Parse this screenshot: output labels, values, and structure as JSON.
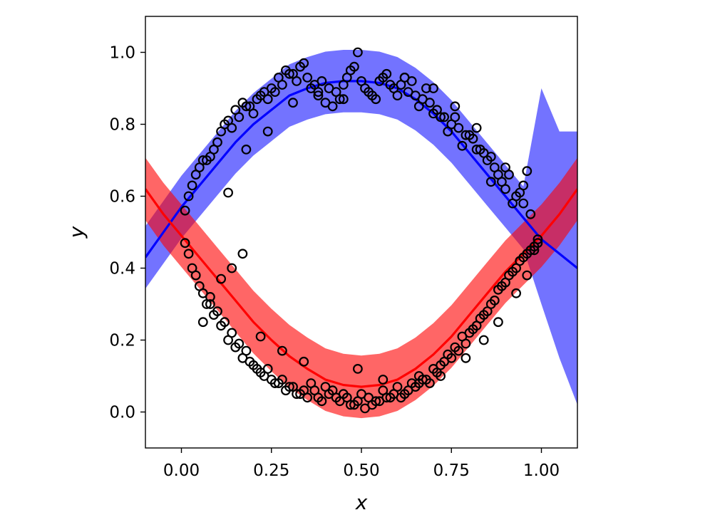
{
  "chart_data": {
    "type": "scatter",
    "title": "",
    "xlabel": "x",
    "ylabel": "y",
    "xlim": [
      -0.1,
      1.1
    ],
    "ylim": [
      -0.1,
      1.1
    ],
    "x_ticks": [
      "0.00",
      "0.25",
      "0.50",
      "0.75",
      "1.00"
    ],
    "x_tick_values": [
      0.0,
      0.25,
      0.5,
      0.75,
      1.0
    ],
    "y_ticks": [
      "0.0",
      "0.2",
      "0.4",
      "0.6",
      "0.8",
      "1.0"
    ],
    "y_tick_values": [
      0.0,
      0.2,
      0.4,
      0.6,
      0.8,
      1.0
    ],
    "grid": false,
    "legend": "none",
    "colors": {
      "blue": "#0000ff",
      "red": "#ff0000",
      "points": "#000000"
    },
    "band_width": 0.087,
    "series": [
      {
        "color": "#0000ff",
        "mean_line": {
          "x": [
            -0.1,
            -0.05,
            0.0,
            0.05,
            0.1,
            0.15,
            0.2,
            0.25,
            0.3,
            0.35,
            0.4,
            0.45,
            0.5,
            0.55,
            0.6,
            0.65,
            0.7,
            0.75,
            0.8,
            0.85,
            0.9,
            0.95,
            1.0,
            1.05,
            1.1
          ],
          "y": [
            0.43,
            0.5,
            0.57,
            0.63,
            0.69,
            0.75,
            0.8,
            0.84,
            0.88,
            0.9,
            0.915,
            0.92,
            0.92,
            0.915,
            0.9,
            0.87,
            0.83,
            0.78,
            0.72,
            0.66,
            0.6,
            0.54,
            0.48,
            0.44,
            0.4
          ]
        },
        "band_upper_right": [
          0.9,
          0.78,
          0.78
        ],
        "band_lower_right": [
          0.3,
          0.15,
          0.02
        ]
      },
      {
        "color": "#ff0000",
        "mean_line": {
          "x": [
            -0.1,
            -0.05,
            0.0,
            0.05,
            0.1,
            0.15,
            0.2,
            0.25,
            0.3,
            0.35,
            0.4,
            0.45,
            0.5,
            0.55,
            0.6,
            0.65,
            0.7,
            0.75,
            0.8,
            0.85,
            0.9,
            0.95,
            1.0,
            1.05,
            1.1
          ],
          "y": [
            0.62,
            0.55,
            0.49,
            0.43,
            0.37,
            0.31,
            0.25,
            0.2,
            0.155,
            0.12,
            0.09,
            0.075,
            0.07,
            0.075,
            0.09,
            0.12,
            0.16,
            0.21,
            0.27,
            0.33,
            0.39,
            0.44,
            0.49,
            0.55,
            0.62
          ]
        }
      }
    ],
    "points": {
      "x": [
        0.01,
        0.03,
        0.05,
        0.07,
        0.09,
        0.11,
        0.13,
        0.15,
        0.17,
        0.19,
        0.21,
        0.23,
        0.25,
        0.27,
        0.29,
        0.31,
        0.33,
        0.35,
        0.37,
        0.39,
        0.41,
        0.43,
        0.45,
        0.47,
        0.49,
        0.51,
        0.53,
        0.55,
        0.57,
        0.59,
        0.61,
        0.63,
        0.65,
        0.67,
        0.69,
        0.71,
        0.73,
        0.75,
        0.77,
        0.79,
        0.81,
        0.83,
        0.85,
        0.87,
        0.89,
        0.91,
        0.93,
        0.95,
        0.97,
        0.99,
        0.02,
        0.04,
        0.06,
        0.08,
        0.1,
        0.12,
        0.14,
        0.16,
        0.18,
        0.2,
        0.22,
        0.24,
        0.26,
        0.28,
        0.3,
        0.32,
        0.34,
        0.36,
        0.38,
        0.4,
        0.42,
        0.44,
        0.46,
        0.48,
        0.5,
        0.52,
        0.54,
        0.56,
        0.58,
        0.6,
        0.62,
        0.64,
        0.66,
        0.68,
        0.7,
        0.72,
        0.74,
        0.76,
        0.78,
        0.8,
        0.82,
        0.84,
        0.86,
        0.88,
        0.9,
        0.92,
        0.94,
        0.96,
        0.98,
        0.01,
        0.03,
        0.05,
        0.07,
        0.09,
        0.11,
        0.13,
        0.15,
        0.17,
        0.19,
        0.21,
        0.23,
        0.25,
        0.27,
        0.29,
        0.31,
        0.33,
        0.35,
        0.37,
        0.39,
        0.41,
        0.43,
        0.45,
        0.47,
        0.49,
        0.51,
        0.53,
        0.55,
        0.57,
        0.59,
        0.61,
        0.63,
        0.65,
        0.67,
        0.69,
        0.71,
        0.73,
        0.75,
        0.77,
        0.79,
        0.81,
        0.83,
        0.85,
        0.87,
        0.89,
        0.91,
        0.93,
        0.95,
        0.97,
        0.99,
        0.02,
        0.04,
        0.06,
        0.08,
        0.1,
        0.12,
        0.14,
        0.16,
        0.18,
        0.2,
        0.22,
        0.24,
        0.26,
        0.28,
        0.3,
        0.32,
        0.34,
        0.36,
        0.38,
        0.4,
        0.42,
        0.44,
        0.46,
        0.48,
        0.5,
        0.52,
        0.54,
        0.56,
        0.58,
        0.6,
        0.62,
        0.64,
        0.66,
        0.68,
        0.7,
        0.72,
        0.74,
        0.76,
        0.78,
        0.8,
        0.82,
        0.84,
        0.86,
        0.88,
        0.9,
        0.92,
        0.94,
        0.96,
        0.98,
        0.06,
        0.08,
        0.11,
        0.14,
        0.17,
        0.22,
        0.28,
        0.34,
        0.49,
        0.56,
        0.66,
        0.72,
        0.79,
        0.84,
        0.88,
        0.93,
        0.96,
        0.13,
        0.18,
        0.24,
        0.31,
        0.38,
        0.45,
        0.62,
        0.7,
        0.76,
        0.82,
        0.86,
        0.9,
        0.95
      ],
      "y": [
        0.56,
        0.63,
        0.68,
        0.7,
        0.73,
        0.78,
        0.81,
        0.84,
        0.86,
        0.85,
        0.87,
        0.89,
        0.9,
        0.93,
        0.95,
        0.94,
        0.96,
        0.93,
        0.91,
        0.92,
        0.9,
        0.89,
        0.91,
        0.95,
        1.0,
        0.9,
        0.88,
        0.92,
        0.94,
        0.9,
        0.91,
        0.89,
        0.88,
        0.87,
        0.86,
        0.84,
        0.82,
        0.8,
        0.79,
        0.77,
        0.76,
        0.73,
        0.7,
        0.68,
        0.64,
        0.66,
        0.6,
        0.58,
        0.55,
        0.48,
        0.6,
        0.66,
        0.7,
        0.71,
        0.75,
        0.8,
        0.79,
        0.82,
        0.85,
        0.83,
        0.88,
        0.87,
        0.89,
        0.91,
        0.94,
        0.92,
        0.97,
        0.9,
        0.88,
        0.86,
        0.85,
        0.87,
        0.93,
        0.96,
        0.92,
        0.89,
        0.87,
        0.93,
        0.91,
        0.88,
        0.93,
        0.92,
        0.85,
        0.9,
        0.83,
        0.82,
        0.78,
        0.82,
        0.74,
        0.77,
        0.73,
        0.72,
        0.64,
        0.66,
        0.62,
        0.58,
        0.61,
        0.67,
        0.45,
        0.47,
        0.4,
        0.35,
        0.3,
        0.27,
        0.24,
        0.2,
        0.18,
        0.15,
        0.14,
        0.12,
        0.1,
        0.09,
        0.08,
        0.06,
        0.07,
        0.05,
        0.04,
        0.06,
        0.03,
        0.05,
        0.04,
        0.05,
        0.02,
        0.03,
        0.01,
        0.02,
        0.03,
        0.04,
        0.05,
        0.04,
        0.06,
        0.07,
        0.09,
        0.08,
        0.11,
        0.14,
        0.15,
        0.17,
        0.19,
        0.23,
        0.26,
        0.28,
        0.31,
        0.35,
        0.38,
        0.4,
        0.43,
        0.45,
        0.47,
        0.44,
        0.38,
        0.33,
        0.32,
        0.28,
        0.25,
        0.22,
        0.19,
        0.17,
        0.13,
        0.11,
        0.12,
        0.08,
        0.09,
        0.07,
        0.05,
        0.06,
        0.08,
        0.04,
        0.07,
        0.06,
        0.03,
        0.04,
        0.02,
        0.05,
        0.04,
        0.03,
        0.06,
        0.04,
        0.07,
        0.05,
        0.08,
        0.1,
        0.09,
        0.12,
        0.13,
        0.16,
        0.18,
        0.21,
        0.22,
        0.24,
        0.27,
        0.3,
        0.34,
        0.36,
        0.39,
        0.42,
        0.44,
        0.46,
        0.25,
        0.3,
        0.37,
        0.4,
        0.44,
        0.21,
        0.17,
        0.14,
        0.12,
        0.09,
        0.08,
        0.1,
        0.15,
        0.2,
        0.25,
        0.33,
        0.38,
        0.61,
        0.73,
        0.78,
        0.86,
        0.89,
        0.87,
        0.93,
        0.9,
        0.85,
        0.79,
        0.71,
        0.68,
        0.63
      ]
    }
  }
}
